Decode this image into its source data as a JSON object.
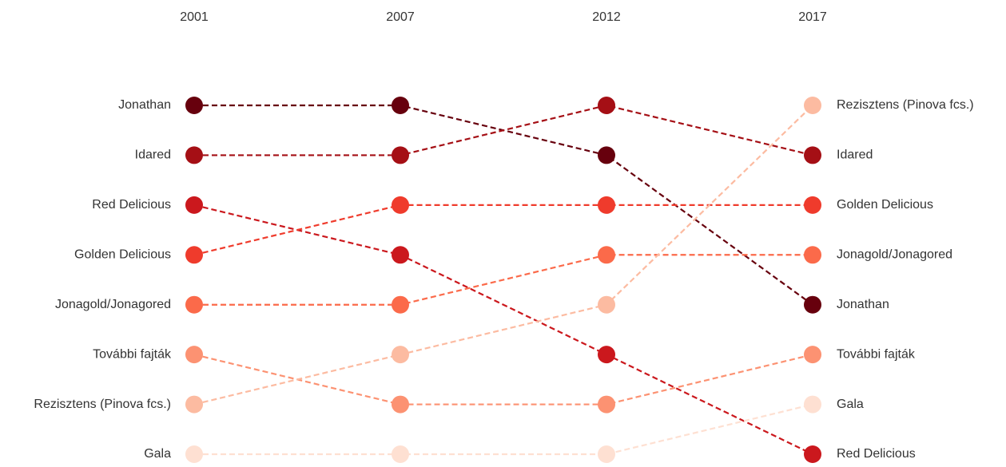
{
  "chart_data": {
    "type": "bump",
    "categories": [
      "2001",
      "2007",
      "2012",
      "2017"
    ],
    "ylim": [
      1,
      8
    ],
    "series": [
      {
        "name": "Jonathan",
        "color": "#67000d",
        "values": [
          1,
          1,
          2,
          5
        ]
      },
      {
        "name": "Idared",
        "color": "#a50f15",
        "values": [
          2,
          2,
          1,
          2
        ]
      },
      {
        "name": "Red Delicious",
        "color": "#cb181d",
        "values": [
          3,
          4,
          6,
          8
        ]
      },
      {
        "name": "Golden Delicious",
        "color": "#ef3b2c",
        "values": [
          4,
          3,
          3,
          3
        ]
      },
      {
        "name": "Jonagold/Jonagored",
        "color": "#fb6a4a",
        "values": [
          5,
          5,
          4,
          4
        ]
      },
      {
        "name": "További fajták",
        "color": "#fc9272",
        "values": [
          6,
          7,
          7,
          6
        ]
      },
      {
        "name": "Rezisztens (Pinova fcs.)",
        "color": "#fcbba1",
        "values": [
          7,
          6,
          5,
          1
        ]
      },
      {
        "name": "Gala",
        "color": "#fee0d2",
        "values": [
          8,
          8,
          8,
          7
        ]
      }
    ]
  }
}
